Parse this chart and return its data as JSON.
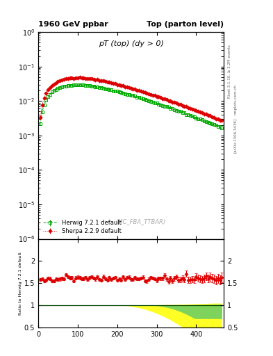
{
  "title_left": "1960 GeV ppbar",
  "title_right": "Top (parton level)",
  "main_title": "pT (top) (dy > 0)",
  "ylabel_ratio": "Ratio to Herwig 7.2.1 default",
  "watermark": "(MC_FBA_TTBAR)",
  "right_label_top": "Rivet 3.1.10, ≥ 3.2M events",
  "right_label_bot": "[arXiv:1306.3436]",
  "mcplots_label": "mcplots.cern.ch",
  "legend_entries": [
    "Herwig 7.2.1 default",
    "Sherpa 2.2.9 default"
  ],
  "herwig_color": "#00aa00",
  "sherpa_color": "#dd0000",
  "ylim_main_log": [
    -6,
    0
  ],
  "ylim_ratio": [
    0.5,
    2.5
  ],
  "xmin": 0,
  "xmax": 470
}
